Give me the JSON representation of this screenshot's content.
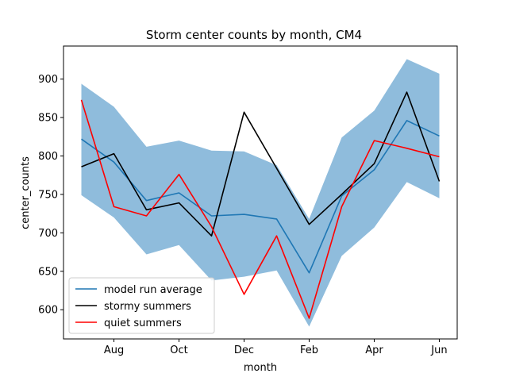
{
  "chart_data": {
    "type": "line",
    "title": "Storm center counts by month, CM4",
    "xlabel": "month",
    "ylabel": "center_counts",
    "x_ticks": [
      {
        "label": "Aug",
        "index": 1
      },
      {
        "label": "Oct",
        "index": 3
      },
      {
        "label": "Dec",
        "index": 5
      },
      {
        "label": "Feb",
        "index": 7
      },
      {
        "label": "Apr",
        "index": 9
      },
      {
        "label": "Jun",
        "index": 11
      }
    ],
    "y_ticks": [
      600,
      650,
      700,
      750,
      800,
      850,
      900
    ],
    "xlim": [
      -0.55,
      11.55
    ],
    "ylim": [
      562,
      943
    ],
    "grid": false,
    "legend_position": "lower-left",
    "band": {
      "color": "#8fbcdc",
      "lower": [
        749,
        720,
        672,
        684,
        638,
        643,
        651,
        578,
        670,
        707,
        766,
        745
      ],
      "upper": [
        894,
        864,
        812,
        820,
        807,
        806,
        788,
        718,
        824,
        859,
        926,
        907
      ]
    },
    "series": [
      {
        "name": "model run average",
        "color": "#1f77b4",
        "values": [
          822,
          792,
          742,
          752,
          722,
          724,
          718,
          648,
          748,
          782,
          846,
          826
        ]
      },
      {
        "name": "stormy summers",
        "color": "#000000",
        "values": [
          786,
          803,
          730,
          739,
          696,
          857,
          784,
          711,
          750,
          790,
          883,
          767
        ]
      },
      {
        "name": "quiet summers",
        "color": "#ff0000",
        "values": [
          873,
          734,
          722,
          776,
          708,
          620,
          696,
          589,
          734,
          820,
          810,
          799
        ]
      }
    ]
  }
}
